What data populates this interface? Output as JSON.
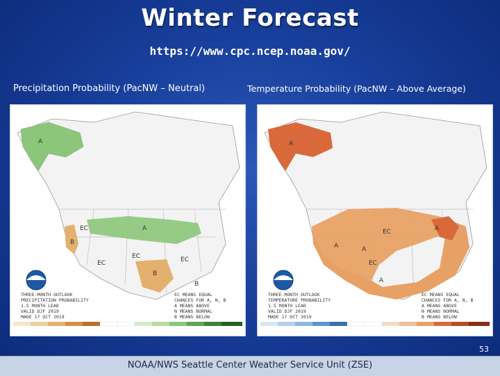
{
  "slide": {
    "title": "Winter Forecast",
    "url": "https://www.cpc.ncep.noaa.gov/",
    "page_number": "53",
    "footer": "NOAA/NWS Seattle Center Weather Service Unit (ZSE)"
  },
  "maps": {
    "left": {
      "caption": "Precipitation Probability (PacNW – Neutral)",
      "outlook_lines": [
        "THREE-MONTH OUTLOOK",
        "PRECIPITATION PROBABILITY",
        "1.5 MONTH LEAD",
        "VALID DJF 2019",
        "MADE 17 OCT 2019"
      ],
      "legend_lines": [
        "EC MEANS EQUAL",
        "CHANCES FOR A, N, B",
        "A MEANS ABOVE",
        "N MEANS NORMAL",
        "B MEANS BELOW"
      ],
      "region_labels": [
        "A",
        "EC",
        "B",
        "B",
        "EC",
        "EC",
        "A",
        "EC",
        "B"
      ],
      "colors": {
        "above": "#8cc67a",
        "below": "#e3b06e"
      }
    },
    "right": {
      "caption": "Temperature Probability (PacNW – Above Average)",
      "outlook_lines": [
        "THREE-MONTH OUTLOOK",
        "TEMPERATURE PROBABILITY",
        "1.5 MONTH LEAD",
        "VALID DJF 2019",
        "MADE 17 OCT 2019"
      ],
      "legend_lines": [
        "EC MEANS EQUAL",
        "CHANCES FOR A, N, B",
        "A MEANS ABOVE",
        "N MEANS NORMAL",
        "B MEANS BELOW"
      ],
      "region_labels": [
        "A",
        "A",
        "EC",
        "A",
        "A",
        "A",
        "EC"
      ],
      "colors": {
        "above": "#e8a165",
        "below": "#8fb8e0"
      }
    }
  }
}
